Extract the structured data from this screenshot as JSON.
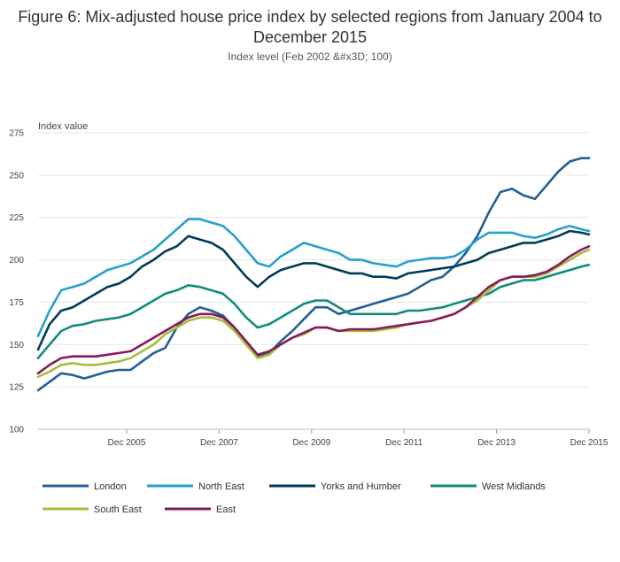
{
  "title": "Figure 6: Mix-adjusted house price index by selected regions from January 2004 to December 2015",
  "subtitle": "Index level (Feb 2002 &#x3D; 100)",
  "chart_data": {
    "type": "line",
    "title": "Figure 6: Mix-adjusted house price index by selected regions from January 2004 to December 2015",
    "subtitle": "Index level (Feb 2002 &#x3D; 100)",
    "xlabel": "",
    "ylabel": "Index value",
    "ylim": [
      100,
      275
    ],
    "yticks": [
      100,
      125,
      150,
      175,
      200,
      225,
      250,
      275
    ],
    "xlim": [
      "2004-01",
      "2015-12"
    ],
    "xticks": [
      "Dec 2005",
      "Dec 2007",
      "Dec 2009",
      "Dec 2011",
      "Dec 2013",
      "Dec 2015"
    ],
    "grid": true,
    "legend_position": "bottom",
    "x": [
      "2004-01",
      "2004-04",
      "2004-07",
      "2004-10",
      "2005-01",
      "2005-04",
      "2005-07",
      "2005-10",
      "2006-01",
      "2006-04",
      "2006-07",
      "2006-10",
      "2007-01",
      "2007-04",
      "2007-07",
      "2007-10",
      "2008-01",
      "2008-04",
      "2008-07",
      "2008-10",
      "2009-01",
      "2009-04",
      "2009-07",
      "2009-10",
      "2010-01",
      "2010-04",
      "2010-07",
      "2010-10",
      "2011-01",
      "2011-04",
      "2011-07",
      "2011-10",
      "2012-01",
      "2012-04",
      "2012-07",
      "2012-10",
      "2013-01",
      "2013-04",
      "2013-07",
      "2013-10",
      "2014-01",
      "2014-04",
      "2014-07",
      "2014-10",
      "2015-01",
      "2015-04",
      "2015-07",
      "2015-10",
      "2015-12"
    ],
    "series": [
      {
        "name": "London",
        "color": "#206095",
        "values": [
          123,
          128,
          133,
          132,
          130,
          132,
          134,
          135,
          135,
          140,
          145,
          148,
          160,
          168,
          172,
          170,
          167,
          160,
          150,
          143,
          145,
          152,
          158,
          165,
          172,
          172,
          168,
          170,
          172,
          174,
          176,
          178,
          180,
          184,
          188,
          190,
          196,
          204,
          214,
          228,
          240,
          242,
          238,
          236,
          244,
          252,
          258,
          260,
          260
        ]
      },
      {
        "name": "North East",
        "color": "#27A0CC",
        "values": [
          155,
          170,
          182,
          184,
          186,
          190,
          194,
          196,
          198,
          202,
          206,
          212,
          218,
          224,
          224,
          222,
          220,
          214,
          206,
          198,
          196,
          202,
          206,
          210,
          208,
          206,
          204,
          200,
          200,
          198,
          197,
          196,
          199,
          200,
          201,
          201,
          202,
          206,
          212,
          216,
          216,
          216,
          214,
          213,
          215,
          218,
          220,
          218,
          217
        ]
      },
      {
        "name": "Yorks and Humber",
        "color": "#003C57",
        "values": [
          147,
          162,
          170,
          172,
          176,
          180,
          184,
          186,
          190,
          196,
          200,
          205,
          208,
          214,
          212,
          210,
          206,
          198,
          190,
          184,
          190,
          194,
          196,
          198,
          198,
          196,
          194,
          192,
          192,
          190,
          190,
          189,
          192,
          193,
          194,
          195,
          196,
          198,
          200,
          204,
          206,
          208,
          210,
          210,
          212,
          214,
          217,
          216,
          215
        ]
      },
      {
        "name": "West Midlands",
        "color": "#118C7B",
        "values": [
          142,
          150,
          158,
          161,
          162,
          164,
          165,
          166,
          168,
          172,
          176,
          180,
          182,
          185,
          184,
          182,
          180,
          174,
          166,
          160,
          162,
          166,
          170,
          174,
          176,
          176,
          172,
          168,
          168,
          168,
          168,
          168,
          170,
          170,
          171,
          172,
          174,
          176,
          178,
          180,
          184,
          186,
          188,
          188,
          190,
          192,
          194,
          196,
          197
        ]
      },
      {
        "name": "South East",
        "color": "#A8BD3A",
        "values": [
          131,
          134,
          138,
          139,
          138,
          138,
          139,
          140,
          142,
          146,
          150,
          156,
          160,
          164,
          166,
          166,
          164,
          158,
          150,
          142,
          144,
          150,
          154,
          156,
          160,
          160,
          158,
          158,
          158,
          158,
          159,
          160,
          162,
          163,
          164,
          166,
          168,
          172,
          176,
          182,
          188,
          190,
          190,
          190,
          192,
          196,
          200,
          204,
          206
        ]
      },
      {
        "name": "East",
        "color": "#871A5B",
        "values": [
          133,
          138,
          142,
          143,
          143,
          143,
          144,
          145,
          146,
          150,
          154,
          158,
          162,
          166,
          168,
          168,
          166,
          160,
          152,
          144,
          146,
          150,
          154,
          157,
          160,
          160,
          158,
          159,
          159,
          159,
          160,
          161,
          162,
          163,
          164,
          166,
          168,
          172,
          178,
          184,
          188,
          190,
          190,
          191,
          193,
          197,
          202,
          206,
          208
        ]
      }
    ]
  }
}
